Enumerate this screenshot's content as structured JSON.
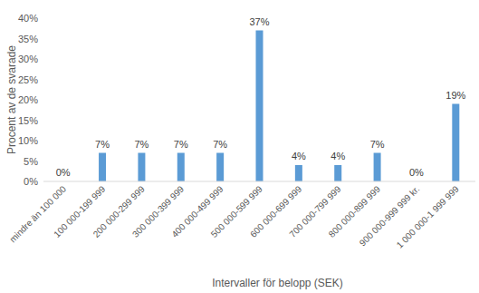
{
  "chart_data": {
    "type": "bar",
    "x_label": "Intervaller för belopp (SEK)",
    "y_label": "Procent av de svarade",
    "categories": [
      "mindre än 100 000",
      "100 000-199 999",
      "200 000-299 999",
      "300 000-399 999",
      "400 000-499 999",
      "500 000-599 999",
      "600 000-699 999",
      "700 000-799 999",
      "800 000-899 999",
      "900 000-999 999 kr.",
      "1 000 000-1 999 999"
    ],
    "values": [
      0,
      7,
      7,
      7,
      7,
      37,
      4,
      4,
      7,
      0,
      19
    ],
    "value_labels": [
      "0%",
      "7%",
      "7%",
      "7%",
      "7%",
      "37%",
      "4%",
      "4%",
      "7%",
      "0%",
      "19%"
    ],
    "color": "#5b9bd5",
    "ylim": [
      0,
      40
    ],
    "yticks": [
      {
        "value": 0,
        "label": "0%"
      },
      {
        "value": 5,
        "label": "5%"
      },
      {
        "value": 10,
        "label": "10%"
      },
      {
        "value": 15,
        "label": "15%"
      },
      {
        "value": 20,
        "label": "20%"
      },
      {
        "value": 25,
        "label": "25%"
      },
      {
        "value": 30,
        "label": "30%"
      },
      {
        "value": 35,
        "label": "35%"
      },
      {
        "value": 40,
        "label": "40%"
      }
    ],
    "grid": false,
    "data_labels": true
  }
}
